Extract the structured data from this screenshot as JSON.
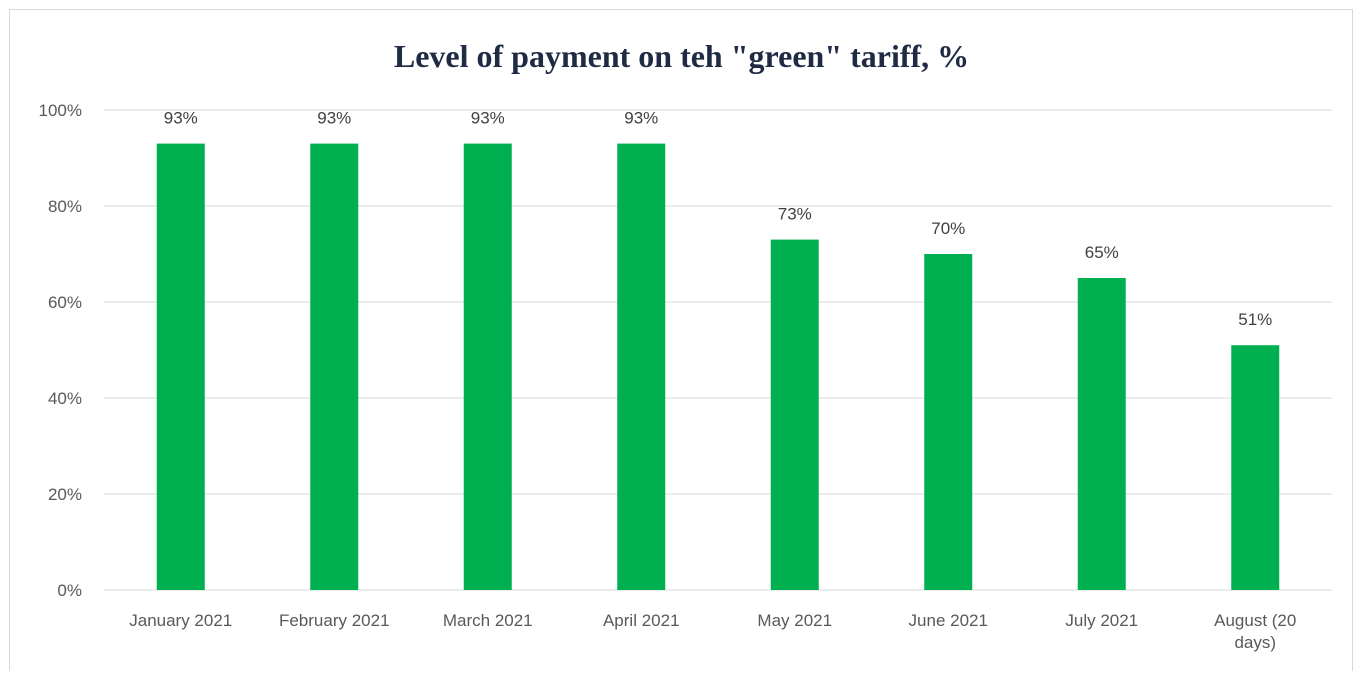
{
  "chart_data": {
    "type": "bar",
    "title": "Level of payment on teh \"green\" tariff, %",
    "categories": [
      "January 2021",
      "February 2021",
      "March 2021",
      "April 2021",
      "May 2021",
      "June 2021",
      "July 2021",
      "August (20 days)"
    ],
    "category_label_lines": [
      [
        "January 2021"
      ],
      [
        "February 2021"
      ],
      [
        "March 2021"
      ],
      [
        "April 2021"
      ],
      [
        "May 2021"
      ],
      [
        "June 2021"
      ],
      [
        "July 2021"
      ],
      [
        "August (20",
        "days)"
      ]
    ],
    "values": [
      93,
      93,
      93,
      93,
      73,
      70,
      65,
      51
    ],
    "data_labels": [
      "93%",
      "93%",
      "93%",
      "93%",
      "73%",
      "70%",
      "65%",
      "51%"
    ],
    "ylim": [
      0,
      100
    ],
    "yticks": [
      0,
      20,
      40,
      60,
      80,
      100
    ],
    "ytick_labels": [
      "0%",
      "20%",
      "40%",
      "60%",
      "80%",
      "100%"
    ],
    "xlabel": "",
    "ylabel": "",
    "grid": true,
    "legend": "none",
    "bar_color": "#00b050"
  }
}
